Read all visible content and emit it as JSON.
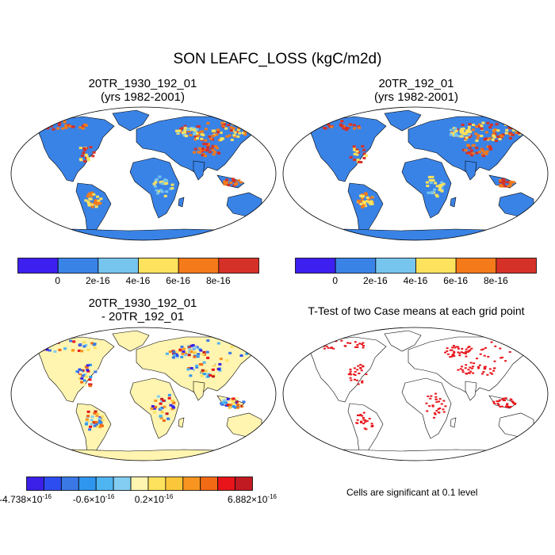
{
  "title": "SON LEAFC_LOSS (kgC/m2d)",
  "panels": [
    {
      "id": "case1",
      "title_line1": "20TR_1930_192_01",
      "title_line2": "(yrs 1982-2001)"
    },
    {
      "id": "case2",
      "title_line1": "20TR_192_01",
      "title_line2": "(yrs 1982-2001)"
    },
    {
      "id": "diff",
      "title_line1": "20TR_1930_192_01",
      "title_line2": "- 20TR_192_01"
    },
    {
      "id": "ttest",
      "title_line1": "T-Test of two Case means at each grid point"
    }
  ],
  "colorbar_main": {
    "colors": [
      "#3d1ff0",
      "#3a83e6",
      "#76c5ee",
      "#fde25d",
      "#f57a1a",
      "#d63128"
    ],
    "ticks": [
      "0",
      "2e-16",
      "4e-16",
      "6e-16",
      "8e-16"
    ]
  },
  "colorbar_diff": {
    "colors": [
      "#3a20e8",
      "#2d4df0",
      "#3a78e6",
      "#2f96ef",
      "#4fb5f0",
      "#84cdf2",
      "#fff4b0",
      "#fde25d",
      "#fbc63a",
      "#f89520",
      "#f26a14",
      "#e8141a",
      "#c21a22"
    ],
    "tick_main": [
      "-4.738",
      "-0.6",
      "0.2",
      "6.882"
    ],
    "tick_exp": "-16",
    "times": "×10"
  },
  "ttest_note": "Cells are significant at 0.1 level",
  "colors": {
    "ocean": "#ffffff",
    "land_base": "#3a83e6",
    "diff_base": "#fff4b0",
    "significant": "#e8141a"
  }
}
